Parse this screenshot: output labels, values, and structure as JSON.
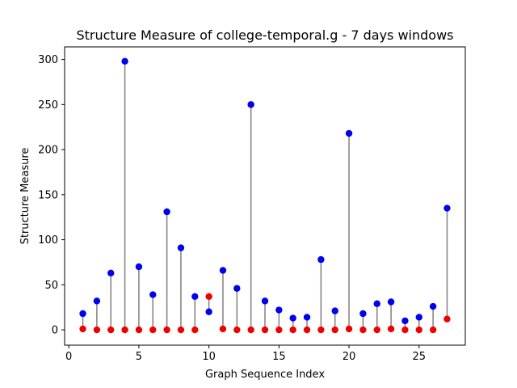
{
  "chart_data": {
    "type": "scatter",
    "title": "Structure Measure of college-temporal.g - 7 days windows",
    "xlabel": "Graph Sequence Index",
    "ylabel": "Structure Measure",
    "xlim": [
      -0.3,
      28.3
    ],
    "ylim": [
      -17,
      314
    ],
    "xticks": [
      0,
      5,
      10,
      15,
      20,
      25
    ],
    "yticks": [
      0,
      50,
      100,
      150,
      200,
      250,
      300
    ],
    "grid": false,
    "legend": "none",
    "colors": {
      "upper": "#0000ee",
      "lower": "#ee0000",
      "stem": "#808080"
    },
    "x": [
      1,
      2,
      3,
      4,
      5,
      6,
      7,
      8,
      9,
      10,
      11,
      12,
      13,
      14,
      15,
      16,
      17,
      18,
      19,
      20,
      21,
      22,
      23,
      24,
      25,
      26,
      27
    ],
    "series": [
      {
        "color": "#0000ee",
        "values": [
          18,
          32,
          63,
          298,
          70,
          39,
          131,
          91,
          37,
          20,
          66,
          46,
          250,
          32,
          22,
          13,
          14,
          78,
          21,
          218,
          18,
          29,
          31,
          10,
          14,
          26,
          135
        ]
      },
      {
        "color": "#ee0000",
        "values": [
          1,
          0,
          0,
          0,
          0,
          0,
          0,
          0,
          0,
          37,
          1,
          0,
          0,
          0,
          0,
          0,
          0,
          0,
          0,
          1,
          0,
          0,
          1,
          0,
          0,
          0,
          12
        ]
      }
    ]
  }
}
